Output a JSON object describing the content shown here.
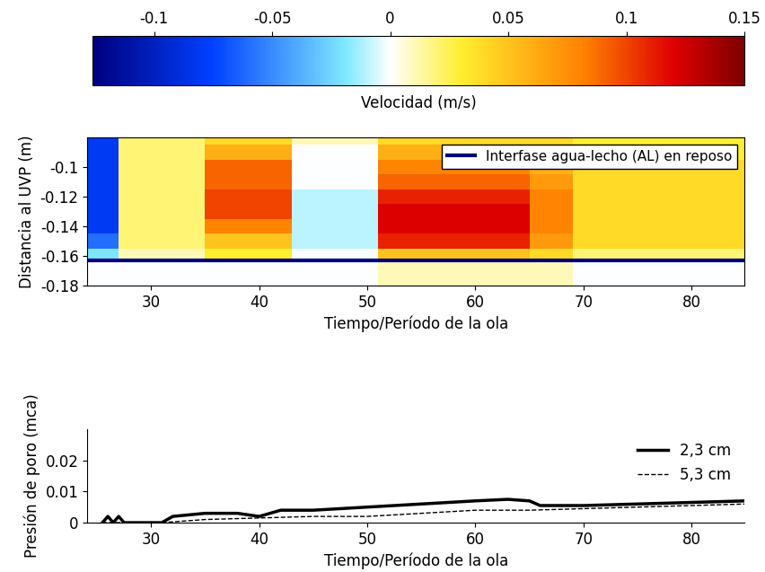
{
  "chart_data": [
    {
      "type": "heatmap",
      "x_label": "Tiempo/Período de la ola",
      "y_label": "Distancia al UVP (m)",
      "xlim": [
        24.1,
        84.9
      ],
      "ylim": [
        -0.18,
        -0.08
      ],
      "xticks": [
        30,
        40,
        50,
        60,
        70,
        80
      ],
      "yticks": [
        -0.1,
        -0.12,
        -0.14,
        -0.16,
        -0.18
      ],
      "x_edges": [
        24.1,
        27,
        29,
        31,
        33,
        35,
        37,
        39,
        41,
        43,
        45,
        47,
        49,
        51,
        53,
        55,
        57,
        59,
        61,
        63,
        65,
        67,
        69,
        71,
        73,
        75,
        77,
        79,
        81,
        83,
        84.9
      ],
      "y_edges": [
        -0.18,
        -0.17,
        -0.163,
        -0.155,
        -0.145,
        -0.135,
        -0.125,
        -0.115,
        -0.105,
        -0.095,
        -0.085,
        -0.08
      ],
      "cells": [
        [
          0,
          0,
          0,
          0,
          0,
          0,
          0,
          0,
          0,
          0,
          0,
          0,
          0,
          0.01,
          0.01,
          0.01,
          0.01,
          0.01,
          0.01,
          0.01,
          0.01,
          0.01,
          0,
          0,
          0,
          0,
          0,
          0,
          0,
          0
        ],
        [
          0,
          0,
          0,
          0,
          0,
          0,
          0,
          0,
          0,
          0,
          0,
          0,
          0,
          0.01,
          0.01,
          0.01,
          0.01,
          0.01,
          0.01,
          0.01,
          0.01,
          0.01,
          0,
          0,
          0,
          0,
          0,
          0,
          0,
          0
        ],
        [
          -0.02,
          0.01,
          0.01,
          0.01,
          0.01,
          0.03,
          0.03,
          0.03,
          0.03,
          0,
          0,
          0,
          0,
          0.05,
          0.05,
          0.05,
          0.05,
          0.05,
          0.05,
          0.05,
          0.04,
          0.04,
          0.02,
          0.02,
          0.02,
          0.02,
          0.02,
          0.02,
          0.02,
          0.02
        ],
        [
          -0.06,
          0.02,
          0.02,
          0.02,
          0.02,
          0.05,
          0.05,
          0.05,
          0.05,
          -0.01,
          -0.01,
          -0.01,
          -0.01,
          0.11,
          0.11,
          0.11,
          0.11,
          0.11,
          0.11,
          0.11,
          0.07,
          0.07,
          0.04,
          0.04,
          0.04,
          0.04,
          0.04,
          0.04,
          0.04,
          0.04
        ],
        [
          -0.08,
          0.02,
          0.02,
          0.02,
          0.02,
          0.08,
          0.08,
          0.08,
          0.08,
          -0.01,
          -0.01,
          -0.01,
          -0.01,
          0.12,
          0.12,
          0.12,
          0.12,
          0.12,
          0.12,
          0.12,
          0.08,
          0.08,
          0.04,
          0.04,
          0.04,
          0.04,
          0.04,
          0.04,
          0.04,
          0.04
        ],
        [
          -0.08,
          0.02,
          0.02,
          0.02,
          0.02,
          0.1,
          0.1,
          0.1,
          0.1,
          -0.01,
          -0.01,
          -0.01,
          -0.01,
          0.12,
          0.12,
          0.12,
          0.12,
          0.12,
          0.12,
          0.12,
          0.08,
          0.08,
          0.04,
          0.04,
          0.04,
          0.04,
          0.04,
          0.04,
          0.04,
          0.04
        ],
        [
          -0.08,
          0.02,
          0.02,
          0.02,
          0.02,
          0.1,
          0.1,
          0.1,
          0.1,
          -0.01,
          -0.01,
          -0.01,
          -0.01,
          0.11,
          0.11,
          0.11,
          0.11,
          0.11,
          0.11,
          0.11,
          0.08,
          0.08,
          0.04,
          0.04,
          0.04,
          0.04,
          0.04,
          0.04,
          0.04,
          0.04
        ],
        [
          -0.08,
          0.02,
          0.02,
          0.02,
          0.02,
          0.09,
          0.09,
          0.09,
          0.09,
          0,
          0,
          0,
          0,
          0.09,
          0.09,
          0.09,
          0.09,
          0.09,
          0.09,
          0.09,
          0.07,
          0.07,
          0.04,
          0.04,
          0.04,
          0.04,
          0.04,
          0.04,
          0.04,
          0.04
        ],
        [
          -0.08,
          0.02,
          0.02,
          0.02,
          0.02,
          0.09,
          0.09,
          0.09,
          0.09,
          0,
          0,
          0,
          0,
          0.08,
          0.08,
          0.08,
          0.08,
          0.08,
          0.08,
          0.08,
          0.06,
          0.06,
          0.04,
          0.04,
          0.04,
          0.04,
          0.04,
          0.04,
          0.04,
          0.04
        ],
        [
          -0.08,
          0.02,
          0.02,
          0.02,
          0.02,
          0.06,
          0.06,
          0.06,
          0.06,
          0,
          0,
          0,
          0,
          0.06,
          0.06,
          0.06,
          0.06,
          0.06,
          0.06,
          0.06,
          0.05,
          0.05,
          0.03,
          0.03,
          0.03,
          0.03,
          0.03,
          0.03,
          0.03,
          0.03
        ],
        [
          -0.08,
          0.02,
          0.02,
          0.02,
          0.02,
          0.04,
          0.04,
          0.04,
          0.04,
          0.01,
          0.01,
          0.01,
          0.01,
          0.04,
          0.04,
          0.04,
          0.04,
          0.04,
          0.04,
          0.04,
          0.04,
          0.04,
          0.03,
          0.03,
          0.03,
          0.03,
          0.03,
          0.03,
          0.03,
          0.03
        ]
      ],
      "colorbar": {
        "label": "Velocidad (m/s)",
        "range": [
          -0.126,
          0.15
        ],
        "ticks": [
          -0.1,
          -0.05,
          0,
          0.05,
          0.1,
          0.15
        ]
      },
      "hlines": [
        {
          "name": "Interfase agua-lecho (AL) en reposo",
          "value": -0.163,
          "color": "#00007f"
        }
      ],
      "legend": "upper right"
    },
    {
      "type": "line",
      "x_label": "Tiempo/Período de la ola",
      "y_label": "Presión de poro (mca)",
      "xlim": [
        24.1,
        84.9
      ],
      "ylim": [
        0,
        0.03
      ],
      "xticks": [
        30,
        40,
        50,
        60,
        70,
        80
      ],
      "yticks": [
        0,
        0.01,
        0.02
      ],
      "legend": "upper right",
      "series": [
        {
          "name": "2,3 cm",
          "color": "#000000",
          "line_style": "solid",
          "x": [
            25.5,
            26,
            26.5,
            27,
            27.5,
            28,
            31,
            32,
            35,
            38,
            40,
            42,
            45,
            50,
            55,
            60,
            63,
            65,
            66,
            70,
            75,
            80,
            85
          ],
          "values": [
            0,
            0.002,
            0,
            0.002,
            0,
            0,
            0,
            0.002,
            0.003,
            0.003,
            0.002,
            0.004,
            0.004,
            0.005,
            0.006,
            0.007,
            0.0075,
            0.007,
            0.0055,
            0.0055,
            0.006,
            0.0065,
            0.007
          ]
        },
        {
          "name": "5,3 cm",
          "color": "#000000",
          "line_style": "dashed",
          "x": [
            25.5,
            31,
            35,
            40,
            45,
            50,
            55,
            60,
            65,
            70,
            75,
            80,
            85
          ],
          "values": [
            0,
            0,
            0.001,
            0.0015,
            0.002,
            0.002,
            0.003,
            0.004,
            0.004,
            0.0045,
            0.005,
            0.0055,
            0.006
          ]
        }
      ]
    }
  ]
}
